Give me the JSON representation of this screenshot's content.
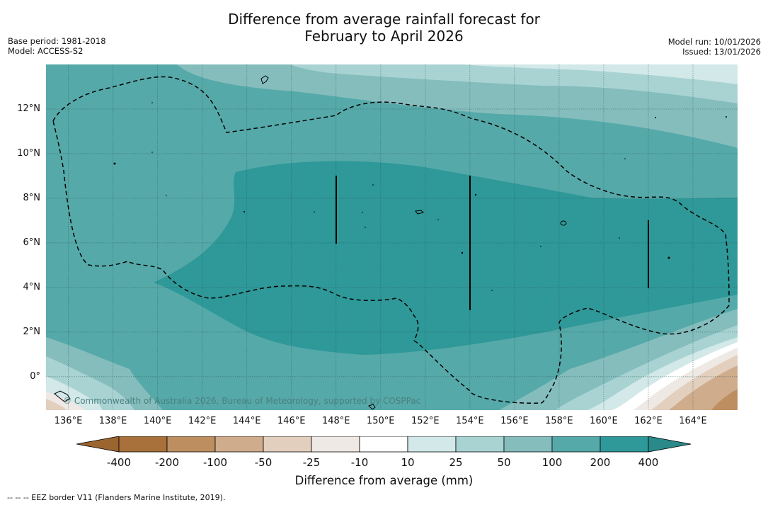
{
  "title": {
    "line1": "Difference from average rainfall forecast for",
    "line2": "February to April 2026"
  },
  "meta_left": {
    "base_period": "Base period: 1981-2018",
    "model": "Model: ACCESS-S2"
  },
  "meta_right": {
    "model_run": "Model run: 10/01/2026",
    "issued": "Issued: 13/01/2026"
  },
  "map": {
    "copyright": "© Commonwealth of Australia 2026, Bureau of Meteorology, supported by COSPPac",
    "lon_range": [
      135,
      166
    ],
    "lat_range": [
      -1.5,
      14
    ],
    "x_ticks": [
      "136°E",
      "138°E",
      "140°E",
      "142°E",
      "144°E",
      "146°E",
      "148°E",
      "150°E",
      "152°E",
      "154°E",
      "156°E",
      "158°E",
      "160°E",
      "162°E",
      "164°E"
    ],
    "y_ticks": [
      "12°N",
      "10°N",
      "8°N",
      "6°N",
      "4°N",
      "2°N",
      "0°"
    ],
    "colors": {
      "c400": "#2f9898",
      "c200": "#56a9a9",
      "c100": "#85bdbd",
      "c50": "#a9d3d3",
      "c25": "#d3e8e8",
      "white": "#ffffff",
      "n25": "#efe9e5",
      "n50": "#e2cfbd",
      "n100": "#cfac8c",
      "n200": "#bd8f60"
    }
  },
  "colorbar": {
    "title": "Difference from average (mm)",
    "labels": [
      "-400",
      "-200",
      "-100",
      "-50",
      "-25",
      "-10",
      "10",
      "25",
      "50",
      "100",
      "200",
      "400"
    ],
    "colors": [
      "#a8703a",
      "#bd8f60",
      "#cfac8c",
      "#e2cfbd",
      "#efe9e5",
      "#ffffff",
      "#d3e8e8",
      "#a9d3d3",
      "#85bdbd",
      "#56a9a9",
      "#2f9898"
    ],
    "under_color": "#9b6530",
    "over_color": "#2a8989"
  },
  "footnote": "--  --  -- EEZ border V11 (Flanders Marine Institute, 2019)."
}
